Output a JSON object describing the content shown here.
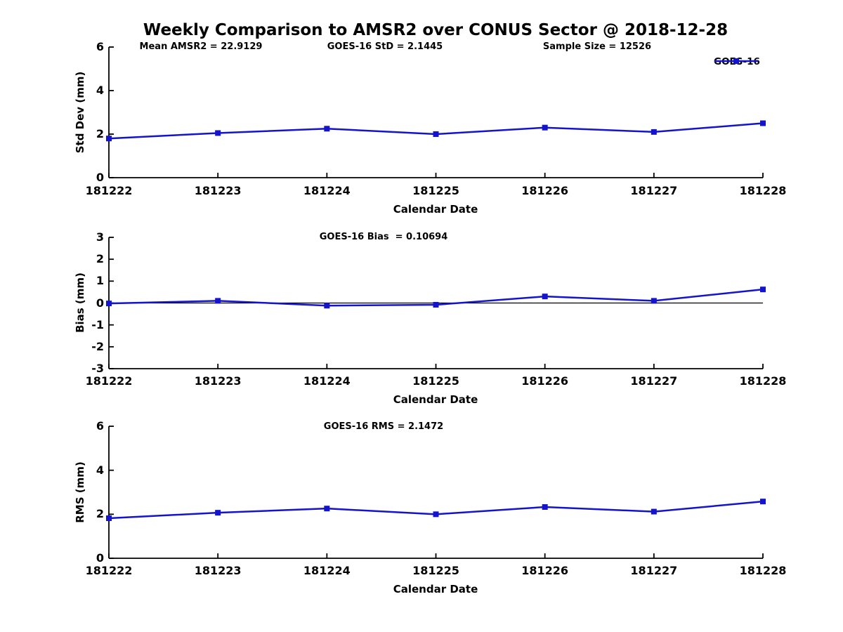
{
  "title": "Weekly Comparison to AMSR2 over CONUS Sector @ 2018-12-28",
  "legend": {
    "label": "GOES-16"
  },
  "colors": {
    "series": "#1414cc",
    "axis": "#000000",
    "zero_line": "#000000",
    "background": "#ffffff"
  },
  "chart_data": [
    {
      "type": "line",
      "ylabel": "Std Dev (mm)",
      "xlabel": "Calendar Date",
      "categories": [
        "181222",
        "181223",
        "181224",
        "181225",
        "181226",
        "181227",
        "181228"
      ],
      "series": [
        {
          "name": "GOES-16",
          "values": [
            1.8,
            2.05,
            2.25,
            2.0,
            2.3,
            2.1,
            2.5
          ]
        }
      ],
      "ylim": [
        0,
        6
      ],
      "yticks": [
        0,
        2,
        4,
        6
      ],
      "zero_line": false,
      "grid": false,
      "annotations": [
        "Mean AMSR2 = 22.9129",
        "GOES-16 StD = 2.1445",
        "Sample Size = 12526"
      ]
    },
    {
      "type": "line",
      "ylabel": "Bias (mm)",
      "xlabel": "Calendar Date",
      "categories": [
        "181222",
        "181223",
        "181224",
        "181225",
        "181226",
        "181227",
        "181228"
      ],
      "series": [
        {
          "name": "GOES-16",
          "values": [
            -0.02,
            0.1,
            -0.12,
            -0.08,
            0.3,
            0.1,
            0.62
          ]
        }
      ],
      "ylim": [
        -3,
        3
      ],
      "yticks": [
        -3,
        -2,
        -1,
        0,
        1,
        2,
        3
      ],
      "zero_line": true,
      "grid": false,
      "annotations": [
        "GOES-16 Bias  = 0.10694"
      ]
    },
    {
      "type": "line",
      "ylabel": "RMS (mm)",
      "xlabel": "Calendar Date",
      "categories": [
        "181222",
        "181223",
        "181224",
        "181225",
        "181226",
        "181227",
        "181228"
      ],
      "series": [
        {
          "name": "GOES-16",
          "values": [
            1.82,
            2.07,
            2.26,
            2.0,
            2.33,
            2.12,
            2.58
          ]
        }
      ],
      "ylim": [
        0,
        6
      ],
      "yticks": [
        0,
        2,
        4,
        6
      ],
      "zero_line": false,
      "grid": false,
      "annotations": [
        "GOES-16 RMS = 2.1472"
      ]
    }
  ]
}
